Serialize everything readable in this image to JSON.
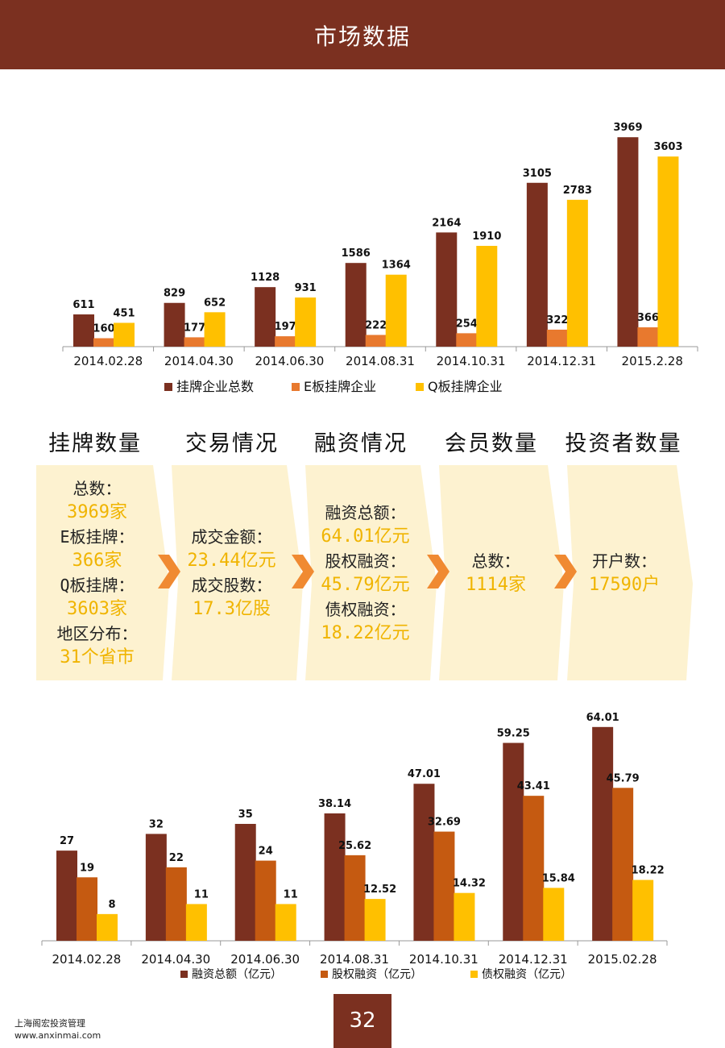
{
  "header": {
    "title": "市场数据"
  },
  "chart_data": [
    {
      "type": "bar",
      "categories": [
        "2014.02.28",
        "2014.04.30",
        "2014.06.30",
        "2014.08.31",
        "2014.10.31",
        "2014.12.31",
        "2015.2.28"
      ],
      "series": [
        {
          "name": "挂牌企业总数",
          "values": [
            611,
            829,
            1128,
            1586,
            2164,
            3105,
            3969
          ],
          "color": "#7b3020"
        },
        {
          "name": "E板挂牌企业",
          "values": [
            160,
            177,
            197,
            222,
            254,
            322,
            366
          ],
          "color": "#e8792e"
        },
        {
          "name": "Q板挂牌企业",
          "values": [
            451,
            652,
            931,
            1364,
            1910,
            2783,
            3603
          ],
          "color": "#ffc000"
        }
      ],
      "ylim": [
        0,
        4400
      ],
      "legend": "bottom",
      "grid": false
    },
    {
      "type": "bar",
      "categories": [
        "2014.02.28",
        "2014.04.30",
        "2014.06.30",
        "2014.08.31",
        "2014.10.31",
        "2014.12.31",
        "2015.02.28"
      ],
      "series": [
        {
          "name": "融资总额（亿元）",
          "values": [
            27,
            32,
            35,
            38.14,
            47.01,
            59.25,
            64.01
          ],
          "color": "#7b3020"
        },
        {
          "name": "股权融资（亿元）",
          "values": [
            19,
            22,
            24,
            25.62,
            32.69,
            43.41,
            45.79
          ],
          "color": "#c55a11"
        },
        {
          "name": "债权融资（亿元）",
          "values": [
            8,
            11,
            11,
            12.52,
            14.32,
            15.84,
            18.22
          ],
          "color": "#ffc000"
        }
      ],
      "ylim": [
        0,
        70
      ],
      "legend": "bottom",
      "grid": false
    }
  ],
  "summary": {
    "headings": [
      "挂牌数量",
      "交易情况",
      "融资情况",
      "会员数量",
      "投资者数量"
    ],
    "panels": [
      {
        "lines": [
          {
            "text": "总数：",
            "kind": "lbl"
          },
          {
            "text": "3969家",
            "kind": "val"
          },
          {
            "text": "E板挂牌：",
            "kind": "lbl"
          },
          {
            "text": "366家",
            "kind": "val"
          },
          {
            "text": "Q板挂牌：",
            "kind": "lbl"
          },
          {
            "text": "3603家",
            "kind": "val"
          },
          {
            "text": "地区分布：",
            "kind": "lbl"
          },
          {
            "text": "31个省市",
            "kind": "val"
          }
        ]
      },
      {
        "lines": [
          {
            "text": "成交金额：",
            "kind": "lbl"
          },
          {
            "text": "23.44亿元",
            "kind": "val"
          },
          {
            "text": "成交股数：",
            "kind": "lbl"
          },
          {
            "text": "17.3亿股",
            "kind": "val"
          }
        ]
      },
      {
        "lines": [
          {
            "text": "融资总额：",
            "kind": "lbl"
          },
          {
            "text": "64.01亿元",
            "kind": "val"
          },
          {
            "text": "股权融资：",
            "kind": "lbl"
          },
          {
            "text": "45.79亿元",
            "kind": "val"
          },
          {
            "text": "债权融资：",
            "kind": "lbl"
          },
          {
            "text": "18.22亿元",
            "kind": "val"
          }
        ]
      },
      {
        "lines": [
          {
            "text": "总数：",
            "kind": "lbl"
          },
          {
            "text": "1114家",
            "kind": "val"
          }
        ]
      },
      {
        "lines": [
          {
            "text": "开户数：",
            "kind": "lbl"
          },
          {
            "text": "17590户",
            "kind": "val"
          }
        ]
      }
    ],
    "panel_color": "#fdf2d0",
    "arrow_color": "#f08a32"
  },
  "footer": {
    "company": "上海阁宏投资管理",
    "website": "www.anxinmai.com",
    "page_number": "32"
  }
}
